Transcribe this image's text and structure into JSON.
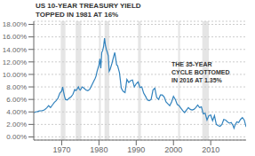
{
  "chart_data": {
    "type": "line",
    "title": "US 10-YEAR TREASURY YIELD\nTOPPED IN 1981 AT 16%",
    "annotations": [
      "THE 35-YEAR\nCYCLE BOTTOMED\nIN 2016 AT 1.35%"
    ],
    "xlim": [
      1962.5,
      2019.5
    ],
    "xticks": [
      1970,
      1980,
      1990,
      2000,
      2010
    ],
    "ylim": [
      -0.5,
      18.5
    ],
    "yticks": [
      {
        "value": 0,
        "label": "0.00%"
      },
      {
        "value": 2,
        "label": "2.00%"
      },
      {
        "value": 4,
        "label": "4.00%"
      },
      {
        "value": 6,
        "label": "6.00%"
      },
      {
        "value": 8,
        "label": "8.00%"
      },
      {
        "value": 10,
        "label": "10.00%"
      },
      {
        "value": 12,
        "label": "12.00%"
      },
      {
        "value": 14,
        "label": "14.00%"
      },
      {
        "value": 16,
        "label": "16.00%"
      },
      {
        "value": 18,
        "label": "18.00%"
      }
    ],
    "grid": true,
    "recession_bands": [
      [
        1969.75,
        1971.0
      ],
      [
        1973.75,
        1975.25
      ],
      [
        1980.0,
        1980.5
      ],
      [
        1981.5,
        1982.75
      ],
      [
        1990.5,
        1991.25
      ],
      [
        2001.25,
        2001.75
      ],
      [
        2007.75,
        2009.5
      ]
    ],
    "x": [
      1962.5,
      1963,
      1963.5,
      1964,
      1964.5,
      1965,
      1965.5,
      1966,
      1966.5,
      1967,
      1967.5,
      1968,
      1968.5,
      1969,
      1969.5,
      1970,
      1970.25,
      1970.5,
      1970.75,
      1971,
      1971.5,
      1972,
      1972.5,
      1973,
      1973.25,
      1973.5,
      1973.75,
      1974,
      1974.25,
      1974.5,
      1974.75,
      1975,
      1975.5,
      1976,
      1976.5,
      1977,
      1977.5,
      1978,
      1978.5,
      1979,
      1979.25,
      1979.5,
      1979.75,
      1980,
      1980.25,
      1980.5,
      1980.75,
      1981,
      1981.25,
      1981.5,
      1981.6,
      1981.75,
      1982,
      1982.25,
      1982.5,
      1982.75,
      1983,
      1983.5,
      1984,
      1984.25,
      1984.5,
      1984.75,
      1985,
      1985.5,
      1986,
      1986.5,
      1987,
      1987.5,
      1988,
      1988.5,
      1989,
      1989.5,
      1990,
      1990.5,
      1991,
      1991.5,
      1992,
      1992.5,
      1993,
      1993.5,
      1994,
      1994.5,
      1995,
      1995.5,
      1996,
      1996.5,
      1997,
      1997.5,
      1998,
      1998.5,
      1999,
      1999.5,
      2000,
      2000.5,
      2001,
      2001.5,
      2002,
      2002.5,
      2003,
      2003.5,
      2004,
      2004.5,
      2005,
      2005.5,
      2006,
      2006.5,
      2007,
      2007.5,
      2008,
      2008.5,
      2009,
      2009.5,
      2010,
      2010.5,
      2011,
      2011.5,
      2012,
      2012.5,
      2013,
      2013.5,
      2014,
      2014.5,
      2015,
      2015.5,
      2016,
      2016.25,
      2016.5,
      2017,
      2017.5,
      2018,
      2018.5,
      2019,
      2019.5
    ],
    "values": [
      3.85,
      4.0,
      4.05,
      4.15,
      4.18,
      4.22,
      4.4,
      4.65,
      5.0,
      4.7,
      5.1,
      5.5,
      5.8,
      6.2,
      7.0,
      7.35,
      8.0,
      7.2,
      6.5,
      6.0,
      5.9,
      6.2,
      6.4,
      6.8,
      7.2,
      7.6,
      7.4,
      7.5,
      7.8,
      8.0,
      7.6,
      7.5,
      8.0,
      7.8,
      7.5,
      7.4,
      7.6,
      8.2,
      8.8,
      9.4,
      9.8,
      10.5,
      11.0,
      11.5,
      12.5,
      11.0,
      13.5,
      13.8,
      14.5,
      15.8,
      15.32,
      14.6,
      14.0,
      13.5,
      13.0,
      10.5,
      10.8,
      11.8,
      13.0,
      13.5,
      12.5,
      11.5,
      11.4,
      10.3,
      7.8,
      7.3,
      7.1,
      9.2,
      8.7,
      9.0,
      9.1,
      8.0,
      8.5,
      8.8,
      7.9,
      8.0,
      7.0,
      6.5,
      5.9,
      5.8,
      6.0,
      7.5,
      7.8,
      6.3,
      6.0,
      6.7,
      6.7,
      6.4,
      5.6,
      5.3,
      5.0,
      5.6,
      6.5,
      6.0,
      5.2,
      5.0,
      4.6,
      4.2,
      3.9,
      4.3,
      4.7,
      4.4,
      4.3,
      4.4,
      4.7,
      5.1,
      4.7,
      4.8,
      3.7,
      3.8,
      2.7,
      3.4,
      3.5,
      2.6,
      3.4,
      2.0,
      1.8,
      1.7,
      2.0,
      2.8,
      2.7,
      2.4,
      2.2,
      2.3,
      1.8,
      1.4,
      1.85,
      2.4,
      2.3,
      2.8,
      3.1,
      2.7,
      1.6
    ]
  }
}
